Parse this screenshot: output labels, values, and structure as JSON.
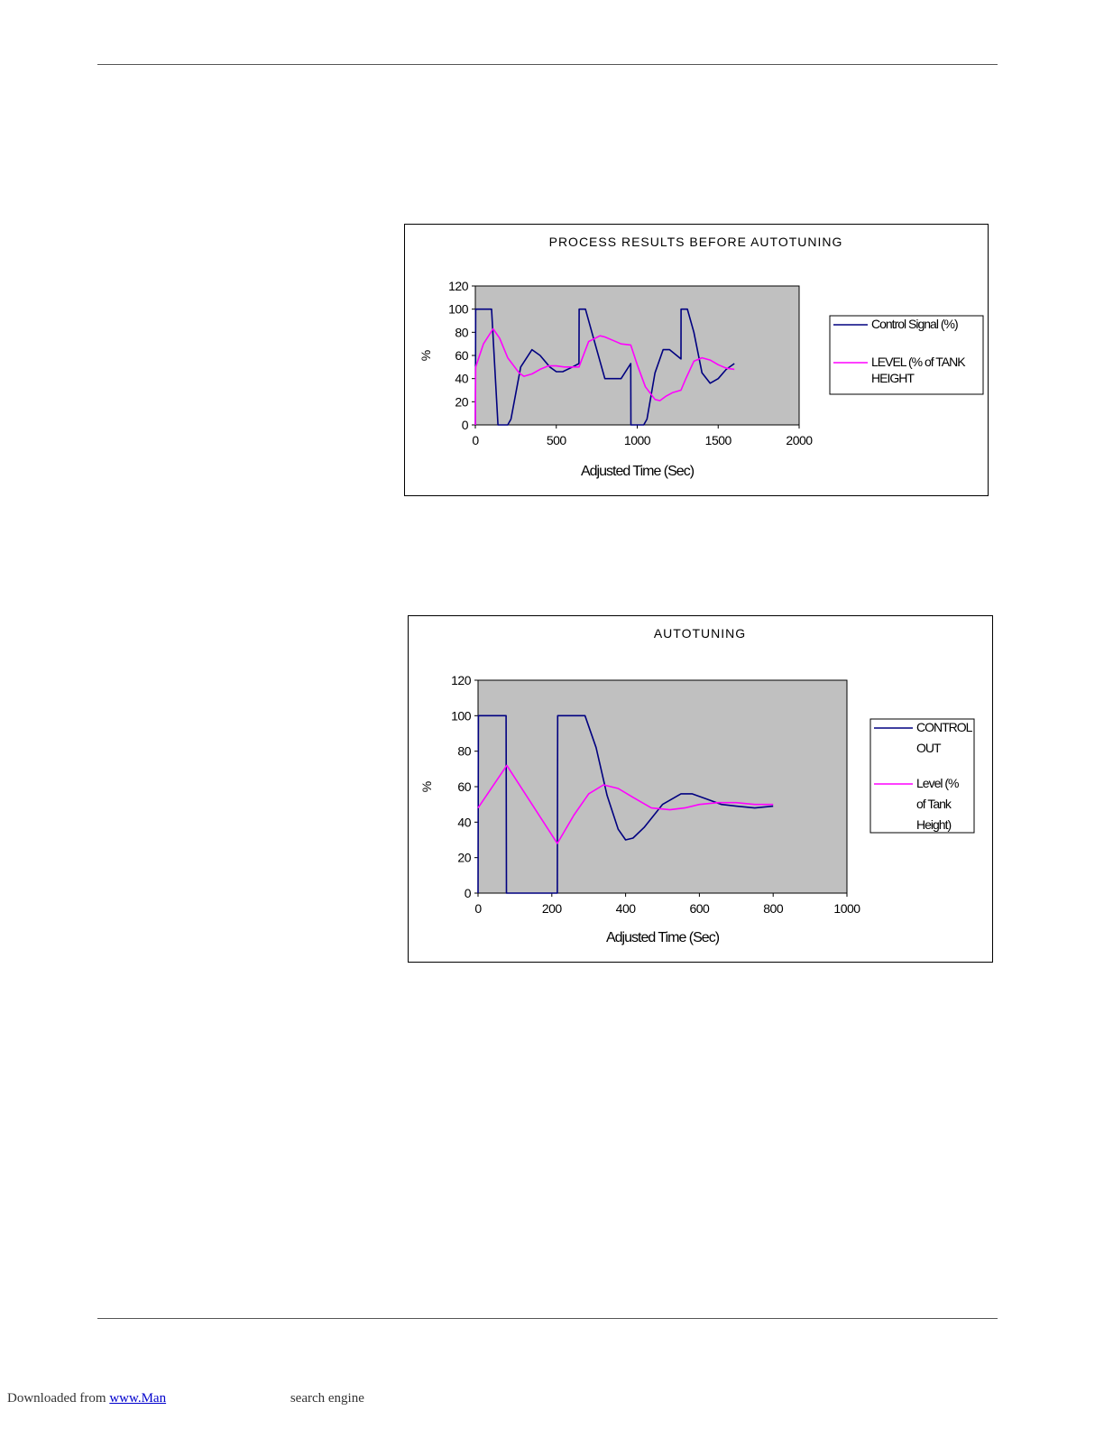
{
  "footer": {
    "prefix": "Downloaded from",
    "link_text": "www.Man",
    "suffix": "search engine"
  },
  "colors": {
    "plot_bg": "#c0c0c0",
    "series_navy": "#000080",
    "series_magenta": "#ff00ff"
  },
  "chart_data": [
    {
      "type": "line",
      "title": "PROCESS RESULTS BEFORE AUTOTUNING",
      "xlabel": "Adjusted Time (Sec)",
      "ylabel": "%",
      "xlim": [
        0,
        2000
      ],
      "ylim": [
        0,
        120
      ],
      "x_ticks": [
        "0",
        "500",
        "1000",
        "1500",
        "2000"
      ],
      "y_ticks": [
        "0",
        "20",
        "40",
        "60",
        "80",
        "100",
        "120"
      ],
      "grid": false,
      "legend": "right",
      "series": [
        {
          "name": "Control Signal (%)",
          "color": "#000080",
          "x": [
            0,
            2,
            95,
            100,
            140,
            200,
            220,
            280,
            350,
            400,
            460,
            500,
            540,
            600,
            640,
            641,
            680,
            720,
            800,
            900,
            960,
            961,
            1040,
            1060,
            1110,
            1160,
            1200,
            1270,
            1271,
            1310,
            1350,
            1400,
            1450,
            1500,
            1550,
            1600
          ],
          "y": [
            0,
            100,
            100,
            100,
            0,
            0,
            5,
            50,
            65,
            60,
            50,
            46,
            46,
            50,
            53,
            100,
            100,
            80,
            40,
            40,
            53,
            0,
            0,
            5,
            45,
            65,
            65,
            57,
            100,
            100,
            80,
            45,
            36,
            40,
            48,
            53
          ]
        },
        {
          "name": "LEVEL (% of TANK HEIGHT",
          "color": "#ff00ff",
          "x": [
            0,
            2,
            50,
            110,
            150,
            200,
            270,
            300,
            350,
            400,
            450,
            500,
            550,
            640,
            700,
            770,
            800,
            850,
            900,
            960,
            1000,
            1050,
            1110,
            1140,
            1180,
            1220,
            1270,
            1300,
            1350,
            1400,
            1450,
            1500,
            1550,
            1600
          ],
          "y": [
            0,
            50,
            70,
            83,
            75,
            58,
            45,
            42,
            44,
            48,
            51,
            51,
            50,
            50,
            72,
            77,
            76,
            73,
            70,
            69,
            52,
            33,
            22,
            21,
            25,
            28,
            30,
            40,
            55,
            58,
            56,
            52,
            49,
            48
          ]
        }
      ]
    },
    {
      "type": "line",
      "title": "AUTOTUNING",
      "xlabel": "Adjusted Time (Sec)",
      "ylabel": "%",
      "xlim": [
        0,
        1000
      ],
      "ylim": [
        0,
        120
      ],
      "x_ticks": [
        "0",
        "200",
        "400",
        "600",
        "800",
        "1000"
      ],
      "y_ticks": [
        "0",
        "20",
        "40",
        "60",
        "80",
        "100",
        "120"
      ],
      "grid": false,
      "legend": "right",
      "series": [
        {
          "name": "CONTROL OUT",
          "color": "#000080",
          "x": [
            0,
            1,
            76,
            77,
            215,
            216,
            290,
            320,
            350,
            380,
            400,
            420,
            450,
            500,
            550,
            580,
            620,
            660,
            700,
            750,
            800
          ],
          "y": [
            0,
            100,
            100,
            0,
            0,
            100,
            100,
            82,
            55,
            36,
            30,
            31,
            37,
            50,
            56,
            56,
            53,
            50,
            49,
            48,
            49
          ]
        },
        {
          "name": "Level (% of Tank Height)",
          "color": "#ff00ff",
          "x": [
            0,
            78,
            215,
            260,
            300,
            340,
            380,
            420,
            470,
            520,
            560,
            600,
            650,
            700,
            750,
            800
          ],
          "y": [
            48,
            72,
            28,
            44,
            56,
            61,
            59,
            54,
            48,
            47,
            48,
            50,
            51,
            51,
            50,
            50
          ]
        }
      ]
    }
  ]
}
